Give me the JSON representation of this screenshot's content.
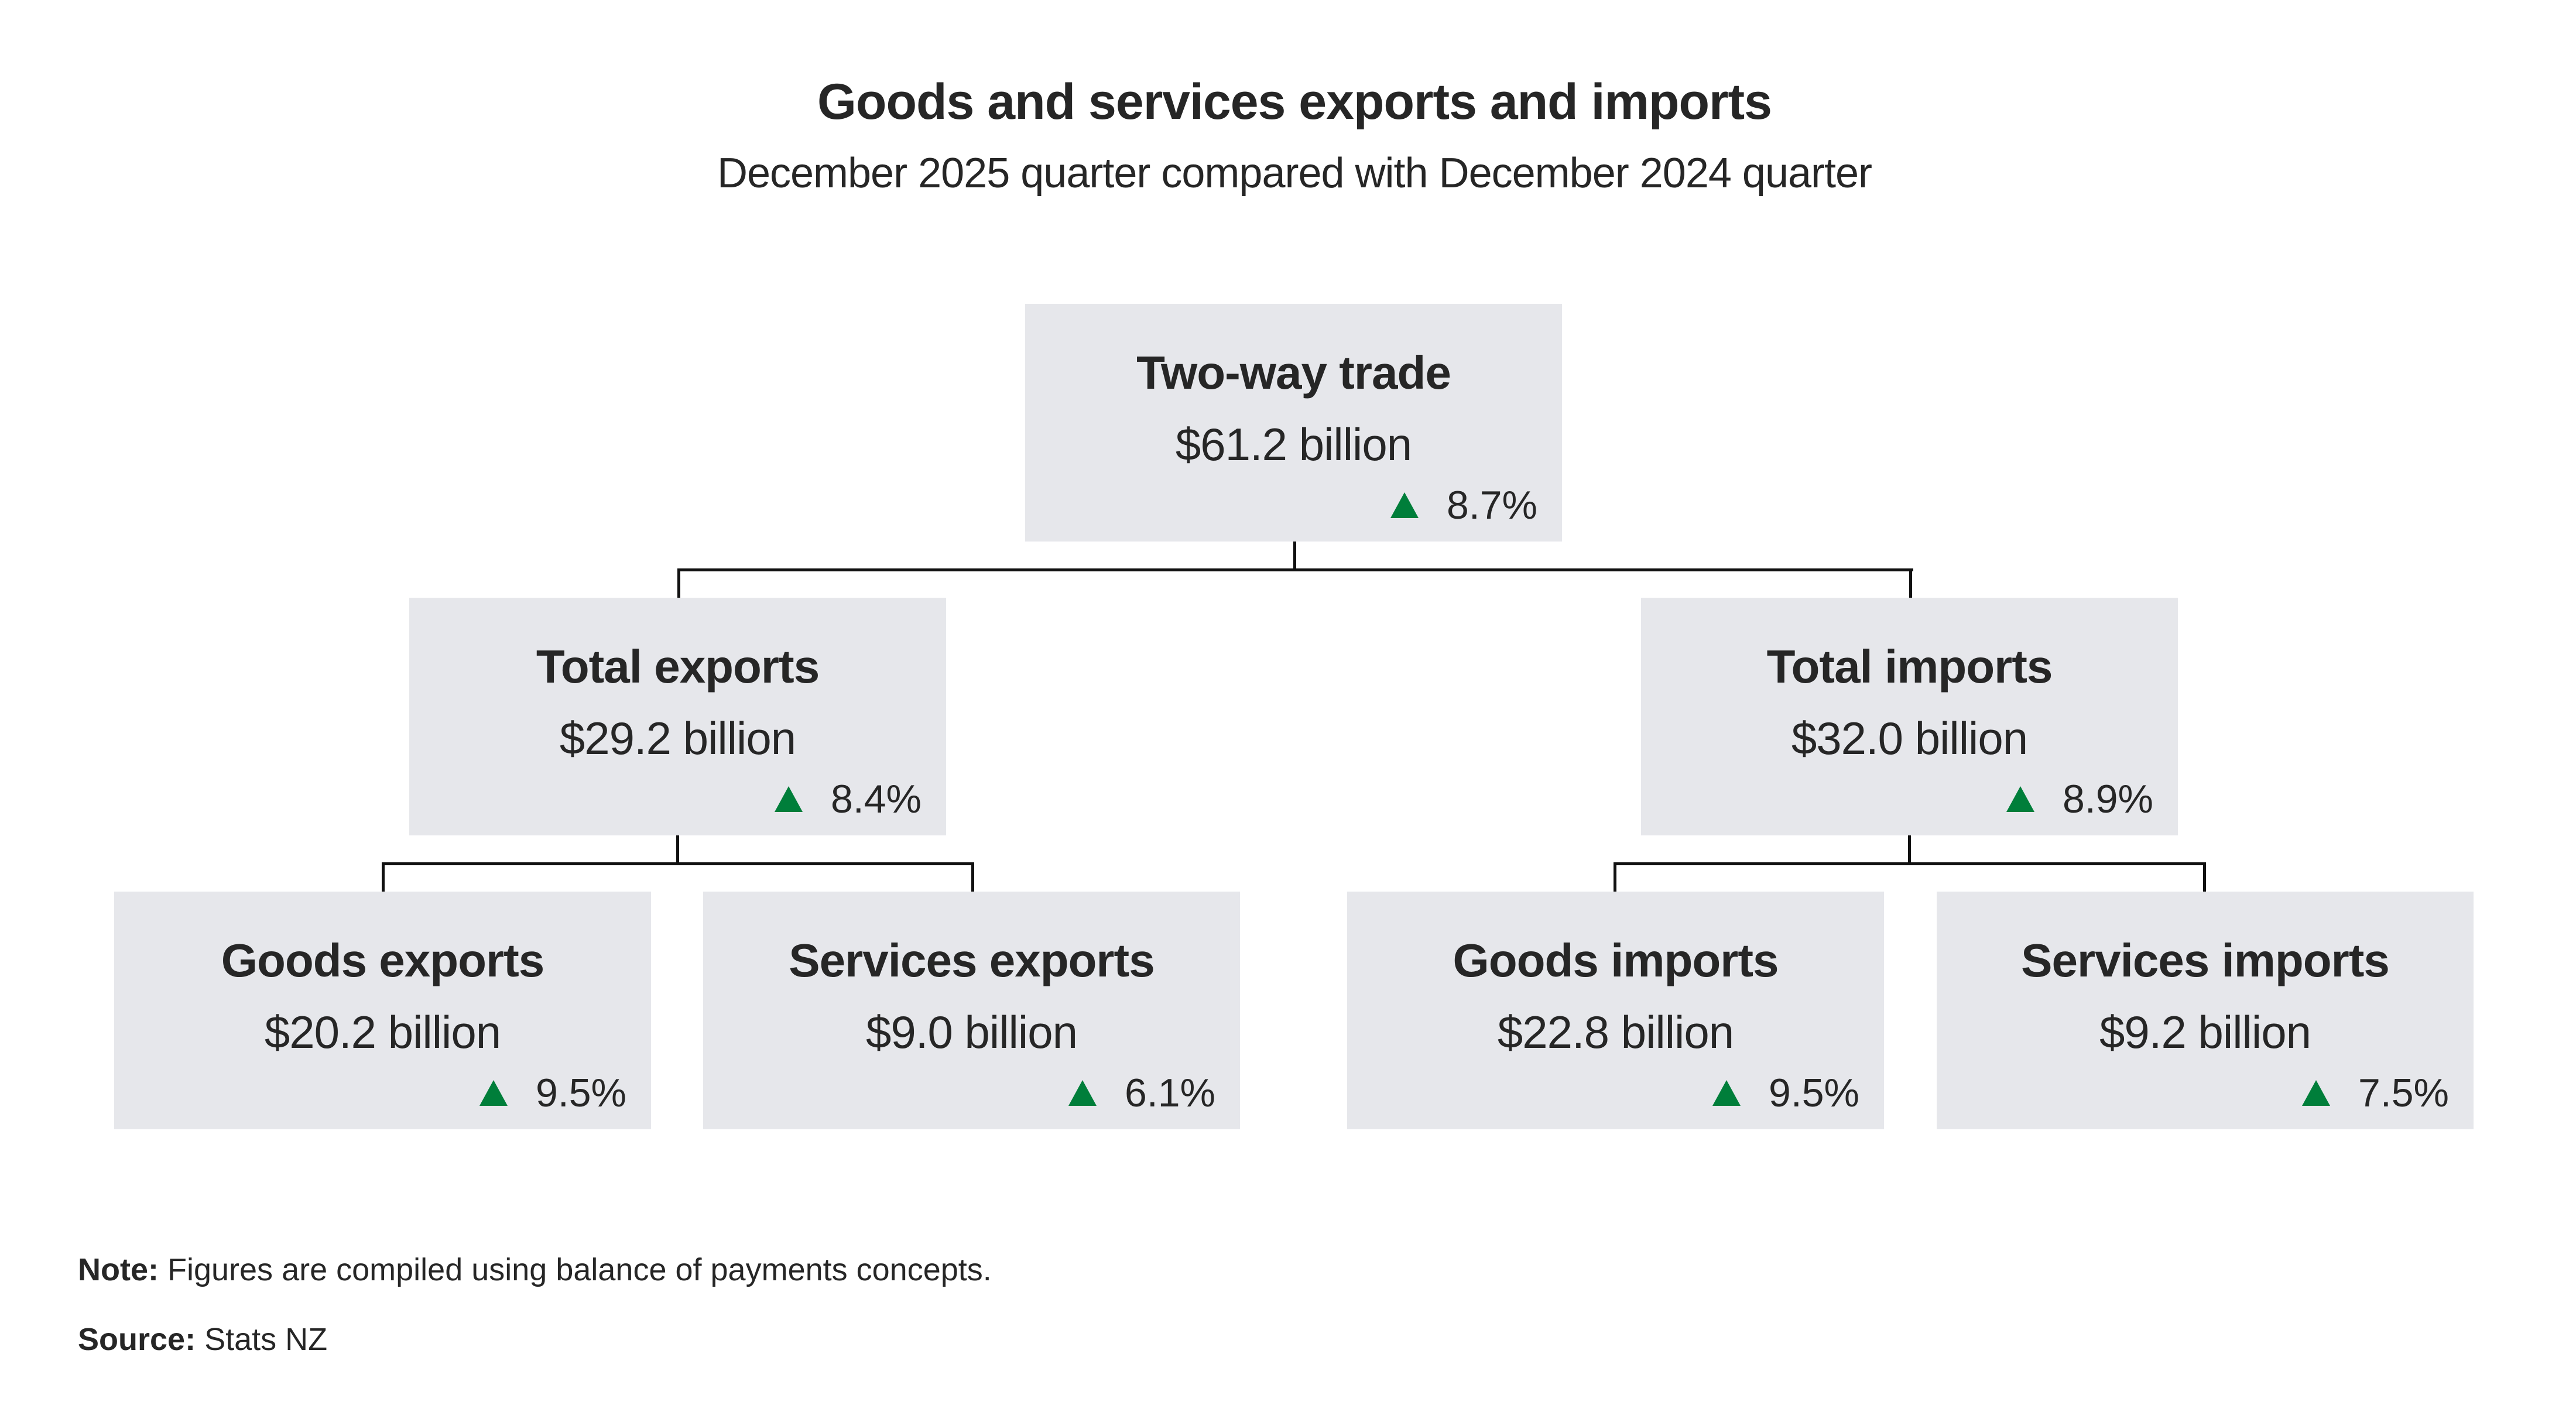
{
  "title": "Goods and services exports and imports",
  "subtitle": "December 2025 quarter compared with December 2024 quarter",
  "colors": {
    "box": "#e6e7eb",
    "increase": "#007e3a",
    "text": "#262626"
  },
  "nodes": [
    {
      "label": "Two-way trade",
      "value": "$61.2 billion",
      "change": "8.7%",
      "direction": "up"
    },
    {
      "label": "Total exports",
      "value": "$29.2 billion",
      "change": "8.4%",
      "direction": "up"
    },
    {
      "label": "Total imports",
      "value": "$32.0 billion",
      "change": "8.9%",
      "direction": "up"
    },
    {
      "label": "Goods exports",
      "value": "$20.2 billion",
      "change": "9.5%",
      "direction": "up"
    },
    {
      "label": "Services exports",
      "value": "$9.0 billion",
      "change": "6.1%",
      "direction": "up"
    },
    {
      "label": "Goods imports",
      "value": "$22.8 billion",
      "change": "9.5%",
      "direction": "up"
    },
    {
      "label": "Services imports",
      "value": "$9.2 billion",
      "change": "7.5%",
      "direction": "up"
    }
  ],
  "note": {
    "label": "Note:",
    "text": "Figures are compiled using balance of payments concepts."
  },
  "source": {
    "label": "Source:",
    "text": "Stats NZ"
  }
}
